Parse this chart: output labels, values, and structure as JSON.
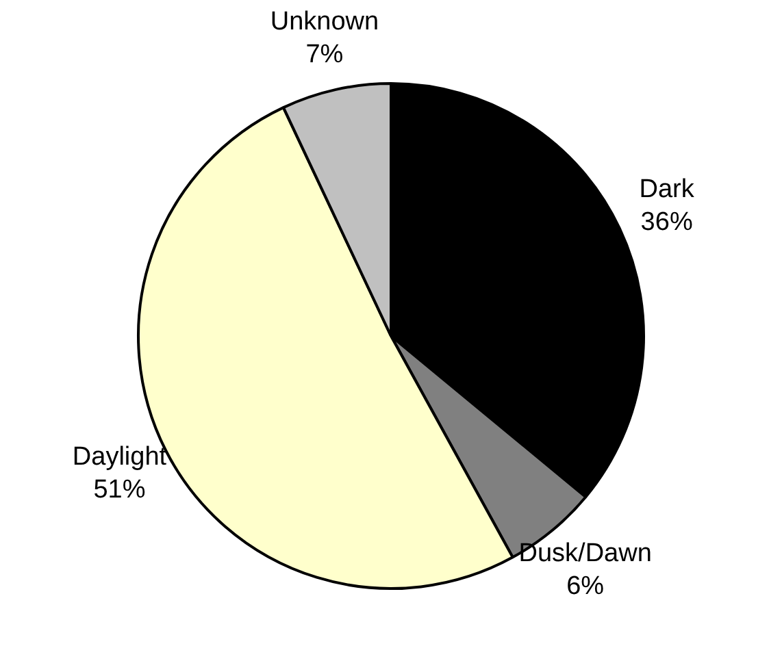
{
  "chart_data": {
    "type": "pie",
    "categories": [
      "Dark",
      "Dusk/Dawn",
      "Daylight",
      "Unknown"
    ],
    "values": [
      36,
      6,
      51,
      7
    ],
    "colors": [
      "#000000",
      "#808080",
      "#ffffcc",
      "#c0c0c0"
    ],
    "value_labels": [
      "36%",
      "6%",
      "51%",
      "7%"
    ],
    "legend": false
  }
}
